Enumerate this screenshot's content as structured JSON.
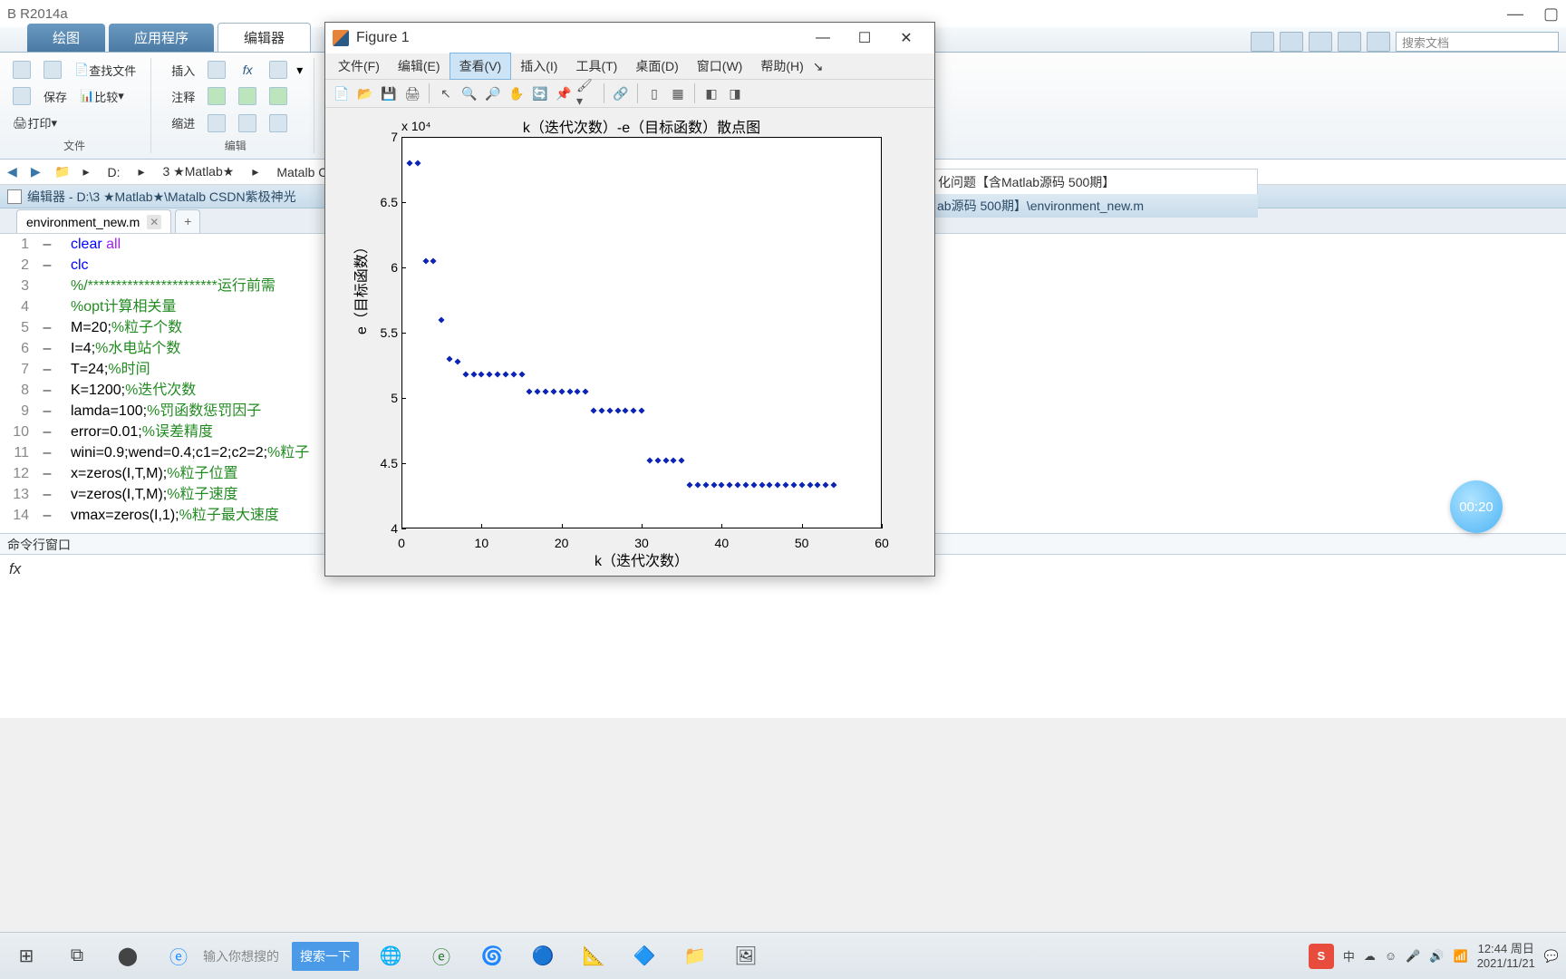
{
  "main_window": {
    "title": "B R2014a",
    "tabs": {
      "plot": "绘图",
      "app": "应用程序",
      "editor": "编辑器"
    },
    "toolstrip": {
      "find_files": "查找文件",
      "insert": "插入",
      "compare": "比较",
      "comment": "注释",
      "print": "打印",
      "indent": "缩进",
      "save": "保存",
      "group_file": "文件",
      "group_edit": "编辑"
    },
    "search_placeholder": "搜索文档"
  },
  "path": {
    "drive": "D:",
    "seg1": "3 ★Matlab★",
    "seg2": "Matalb CSDN紫极",
    "right_frag": "化问题【含Matlab源码 500期】",
    "right_frag2": "ab源码 500期】\\environment_new.m"
  },
  "editor": {
    "title": "编辑器 - D:\\3 ★Matlab★\\Matalb CSDN紫极神光",
    "tab": "environment_new.m",
    "lines": [
      {
        "n": 1,
        "m": "–",
        "seg": [
          {
            "t": "clear ",
            "c": "kw"
          },
          {
            "t": "all",
            "c": "str"
          }
        ]
      },
      {
        "n": 2,
        "m": "–",
        "seg": [
          {
            "t": "clc",
            "c": "kw"
          }
        ]
      },
      {
        "n": 3,
        "m": "",
        "seg": [
          {
            "t": "%/***********************运行前需",
            "c": "com"
          }
        ]
      },
      {
        "n": 4,
        "m": "",
        "seg": [
          {
            "t": "%opt计算相关量",
            "c": "com"
          }
        ]
      },
      {
        "n": 5,
        "m": "–",
        "seg": [
          {
            "t": "M=20;",
            "c": ""
          },
          {
            "t": "%粒子个数",
            "c": "com"
          }
        ]
      },
      {
        "n": 6,
        "m": "–",
        "seg": [
          {
            "t": "I=4;",
            "c": ""
          },
          {
            "t": "%水电站个数",
            "c": "com"
          }
        ]
      },
      {
        "n": 7,
        "m": "–",
        "seg": [
          {
            "t": "T=24;",
            "c": ""
          },
          {
            "t": "%时间",
            "c": "com"
          }
        ]
      },
      {
        "n": 8,
        "m": "–",
        "seg": [
          {
            "t": "K=1200;",
            "c": ""
          },
          {
            "t": "%迭代次数",
            "c": "com"
          }
        ]
      },
      {
        "n": 9,
        "m": "–",
        "seg": [
          {
            "t": "lamda=100;",
            "c": ""
          },
          {
            "t": "%罚函数惩罚因子",
            "c": "com"
          }
        ]
      },
      {
        "n": 10,
        "m": "–",
        "seg": [
          {
            "t": "error=0.01;",
            "c": ""
          },
          {
            "t": "%误差精度",
            "c": "com"
          }
        ]
      },
      {
        "n": 11,
        "m": "–",
        "seg": [
          {
            "t": "wini=0.9;wend=0.4;c1=2;c2=2;",
            "c": ""
          },
          {
            "t": "%粒子",
            "c": "com"
          }
        ]
      },
      {
        "n": 12,
        "m": "–",
        "seg": [
          {
            "t": "x=zeros(I,T,M);",
            "c": ""
          },
          {
            "t": "%粒子位置",
            "c": "com"
          }
        ]
      },
      {
        "n": 13,
        "m": "–",
        "seg": [
          {
            "t": "v=zeros(I,T,M);",
            "c": ""
          },
          {
            "t": "%粒子速度",
            "c": "com"
          }
        ]
      },
      {
        "n": 14,
        "m": "–",
        "seg": [
          {
            "t": "vmax=zeros(I,1);",
            "c": ""
          },
          {
            "t": "%粒子最大速度",
            "c": "com"
          }
        ]
      }
    ]
  },
  "cmd": {
    "title": "命令行窗口",
    "prompt": "fx"
  },
  "figure": {
    "title": "Figure 1",
    "menu": {
      "file": "文件(F)",
      "edit": "编辑(E)",
      "view": "查看(V)",
      "insert": "插入(I)",
      "tools": "工具(T)",
      "desktop": "桌面(D)",
      "window": "窗口(W)",
      "help": "帮助(H)"
    },
    "chart": {
      "title": "k（迭代次数）-e（目标函数）散点图",
      "y_exp": "x 10⁴",
      "ylabel": "e（目标函数）",
      "xlabel": "k（迭代次数）",
      "xlim": [
        0,
        60
      ],
      "ylim": [
        4,
        7
      ],
      "xtick_step": 10,
      "ytick_step": 0.5,
      "xticks": [
        0,
        10,
        20,
        30,
        40,
        50,
        60
      ],
      "yticks": [
        4,
        4.5,
        5,
        5.5,
        6,
        6.5,
        7
      ],
      "point_color": "#0b24b5",
      "bg": "#ffffff",
      "axis_color": "#000000",
      "points": [
        [
          1,
          6.8
        ],
        [
          2,
          6.8
        ],
        [
          3,
          6.05
        ],
        [
          4,
          6.05
        ],
        [
          5,
          5.6
        ],
        [
          6,
          5.3
        ],
        [
          7,
          5.28
        ],
        [
          8,
          5.18
        ],
        [
          9,
          5.18
        ],
        [
          10,
          5.18
        ],
        [
          11,
          5.18
        ],
        [
          12,
          5.18
        ],
        [
          13,
          5.18
        ],
        [
          14,
          5.18
        ],
        [
          15,
          5.18
        ],
        [
          16,
          5.05
        ],
        [
          17,
          5.05
        ],
        [
          18,
          5.05
        ],
        [
          19,
          5.05
        ],
        [
          20,
          5.05
        ],
        [
          21,
          5.05
        ],
        [
          22,
          5.05
        ],
        [
          23,
          5.05
        ],
        [
          24,
          4.9
        ],
        [
          25,
          4.9
        ],
        [
          26,
          4.9
        ],
        [
          27,
          4.9
        ],
        [
          28,
          4.9
        ],
        [
          29,
          4.9
        ],
        [
          30,
          4.9
        ],
        [
          31,
          4.52
        ],
        [
          32,
          4.52
        ],
        [
          33,
          4.52
        ],
        [
          34,
          4.52
        ],
        [
          35,
          4.52
        ],
        [
          36,
          4.33
        ],
        [
          37,
          4.33
        ],
        [
          38,
          4.33
        ],
        [
          39,
          4.33
        ],
        [
          40,
          4.33
        ],
        [
          41,
          4.33
        ],
        [
          42,
          4.33
        ],
        [
          43,
          4.33
        ],
        [
          44,
          4.33
        ],
        [
          45,
          4.33
        ],
        [
          46,
          4.33
        ],
        [
          47,
          4.33
        ],
        [
          48,
          4.33
        ],
        [
          49,
          4.33
        ],
        [
          50,
          4.33
        ],
        [
          51,
          4.33
        ],
        [
          52,
          4.33
        ],
        [
          53,
          4.33
        ],
        [
          54,
          4.33
        ]
      ]
    }
  },
  "timer": "00:20",
  "taskbar": {
    "search_hint": "输入你想搜的",
    "search_btn": "搜索一下",
    "tray_cn": "中",
    "clock_time": "12:44 周日",
    "clock_date": "2021/11/21"
  }
}
